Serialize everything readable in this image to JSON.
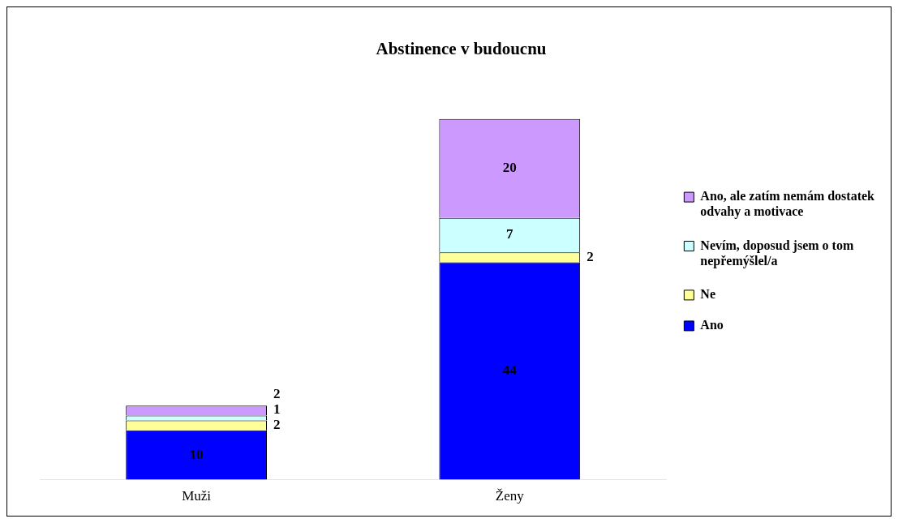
{
  "chart_data": {
    "type": "bar",
    "title": "Abstinence v budoucnu",
    "categories": [
      "Muži",
      "Ženy"
    ],
    "stacked": true,
    "data_labels": true,
    "tick_labels": "x",
    "legend": "right",
    "series": [
      {
        "name": "Ano",
        "color": "#0000ff",
        "values": [
          10,
          44
        ]
      },
      {
        "name": "Ne",
        "color": "#ffff99",
        "values": [
          2,
          2
        ]
      },
      {
        "name": "Nevím, doposud jsem o tom nepřemýšlel/a",
        "color": "#ccffff",
        "values": [
          1,
          7
        ]
      },
      {
        "name": "Ano, ale zatím nemám dostatek odvahy a motivace",
        "color": "#cc99ff",
        "values": [
          2,
          20
        ]
      }
    ]
  }
}
